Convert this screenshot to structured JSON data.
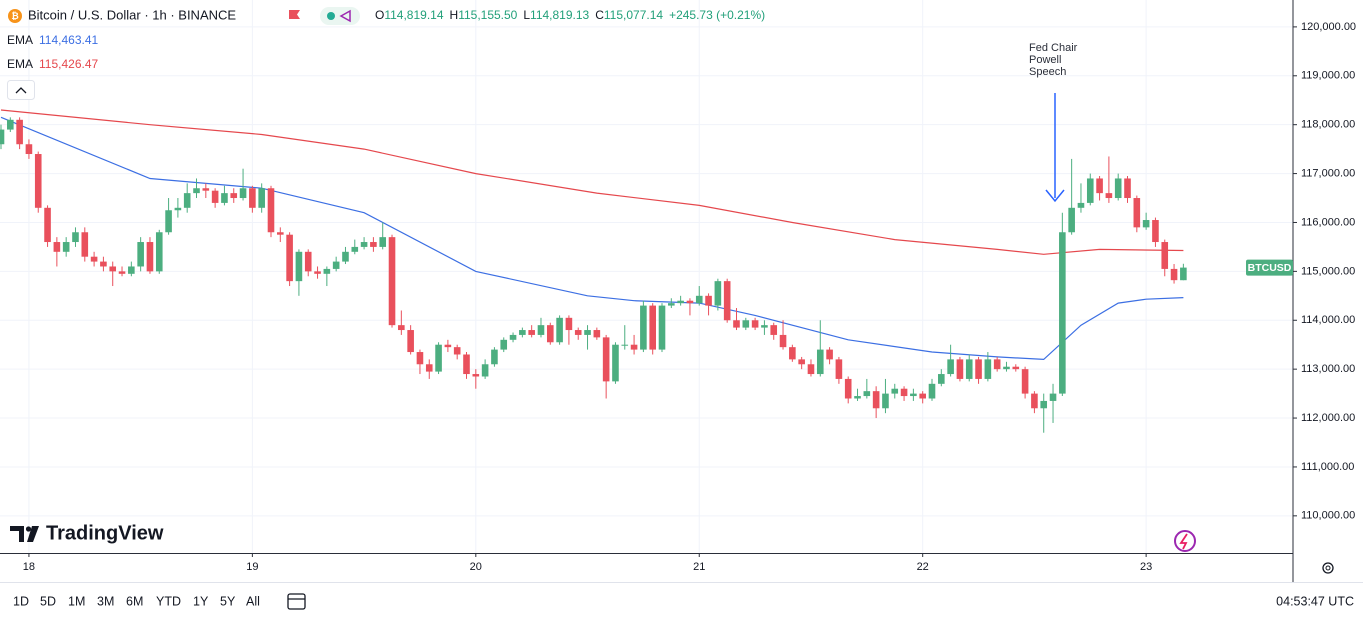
{
  "header": {
    "symbol": "Bitcoin / U.S. Dollar · 1h · BINANCE",
    "ohlc": [
      {
        "label": "O",
        "value": "114,819.14"
      },
      {
        "label": "H",
        "value": "115,155.50"
      },
      {
        "label": "L",
        "value": "114,819.13"
      },
      {
        "label": "C",
        "value": "115,077.14"
      }
    ],
    "change": "+245.73 (+0.21%)",
    "indicator_values": [
      "114,463.41",
      "115,426.47"
    ]
  },
  "chart_data": {
    "type": "candlestick",
    "categories": [
      null,
      null,
      null,
      "18",
      null,
      null,
      null,
      null,
      null,
      null,
      null,
      null,
      null,
      null,
      null,
      null,
      null,
      null,
      null,
      null,
      null,
      null,
      null,
      null,
      null,
      null,
      null,
      "19",
      null,
      null,
      null,
      null,
      null,
      null,
      null,
      null,
      null,
      null,
      null,
      null,
      null,
      null,
      null,
      null,
      null,
      null,
      null,
      null,
      null,
      null,
      null,
      "20",
      null,
      null,
      null,
      null,
      null,
      null,
      null,
      null,
      null,
      null,
      null,
      null,
      null,
      null,
      null,
      null,
      null,
      null,
      null,
      null,
      null,
      null,
      null,
      "21",
      null,
      null,
      null,
      null,
      null,
      null,
      null,
      null,
      null,
      null,
      null,
      null,
      null,
      null,
      null,
      null,
      null,
      null,
      null,
      null,
      null,
      null,
      null,
      "22",
      null,
      null,
      null,
      null,
      null,
      null,
      null,
      null,
      null,
      null,
      null,
      null,
      null,
      null,
      null,
      null,
      null,
      null,
      null,
      null,
      null,
      null,
      null,
      "23",
      null,
      null,
      null,
      null
    ],
    "open": [
      117600,
      117900,
      118100,
      117600,
      117400,
      116300,
      115600,
      115400,
      115600,
      115800,
      115300,
      115200,
      115100,
      115000,
      114950,
      115100,
      115600,
      115000,
      115800,
      116250,
      116300,
      116600,
      116700,
      116650,
      116400,
      116600,
      116500,
      116700,
      116300,
      116700,
      115800,
      115750,
      114800,
      115400,
      115000,
      114950,
      115050,
      115200,
      115400,
      115500,
      115600,
      115500,
      115700,
      113900,
      113800,
      113350,
      113100,
      112950,
      113500,
      113450,
      113300,
      112900,
      112850,
      113100,
      113400,
      113600,
      113700,
      113800,
      113700,
      113900,
      113550,
      114050,
      113800,
      113700,
      113800,
      113650,
      112750,
      113500,
      113500,
      113400,
      114300,
      113400,
      114300,
      114350,
      114400,
      114350,
      114500,
      114300,
      114800,
      114000,
      113850,
      114000,
      113850,
      113900,
      113700,
      113450,
      113200,
      113100,
      112900,
      113400,
      113200,
      112800,
      112400,
      112450,
      112550,
      112200,
      112500,
      112600,
      112450,
      112500,
      112400,
      112700,
      112900,
      113200,
      112800,
      113200,
      112800,
      113200,
      113000,
      113050,
      113000,
      112500,
      112200,
      112350,
      112500,
      115800,
      116300,
      116400,
      116900,
      116600,
      116500,
      116900,
      116500,
      115900,
      116050,
      115600,
      115050,
      114819.14
    ],
    "high": [
      118000,
      118150,
      118150,
      117700,
      117450,
      116350,
      115700,
      115700,
      115900,
      115900,
      115400,
      115300,
      115200,
      115100,
      115200,
      115700,
      115700,
      115850,
      116500,
      116500,
      116800,
      116900,
      116800,
      116700,
      116750,
      116700,
      117100,
      116750,
      116800,
      116750,
      115900,
      115800,
      115450,
      115450,
      115100,
      115100,
      115300,
      115500,
      115650,
      115700,
      115700,
      116000,
      115750,
      114200,
      113900,
      113400,
      113200,
      113550,
      113600,
      113500,
      113350,
      113000,
      113200,
      113450,
      113650,
      113750,
      113850,
      113900,
      114050,
      113950,
      114100,
      114100,
      113850,
      113900,
      113850,
      113700,
      113550,
      113900,
      113700,
      114400,
      114350,
      114350,
      114450,
      114500,
      114450,
      114700,
      114550,
      114850,
      114850,
      114250,
      114050,
      114050,
      114000,
      113950,
      114000,
      113500,
      113250,
      113200,
      114000,
      113450,
      113250,
      112850,
      112600,
      112800,
      112650,
      112800,
      112700,
      112650,
      112600,
      112550,
      112800,
      113000,
      113500,
      113250,
      113300,
      113250,
      113350,
      113250,
      113150,
      113100,
      113050,
      112550,
      112500,
      112700,
      116200,
      117300,
      116800,
      117000,
      116950,
      117350,
      117000,
      116950,
      116550,
      116200,
      116100,
      115650,
      115150,
      115155.5
    ],
    "low": [
      117500,
      117850,
      117500,
      117300,
      116200,
      115500,
      115100,
      115300,
      115500,
      115200,
      115100,
      115000,
      114700,
      114900,
      114900,
      115000,
      114950,
      114950,
      115750,
      116100,
      116200,
      116500,
      116500,
      116300,
      116350,
      116400,
      116450,
      116200,
      116200,
      115700,
      115600,
      114700,
      114500,
      114900,
      114850,
      114700,
      115000,
      115150,
      115350,
      115450,
      115400,
      115450,
      113850,
      113700,
      113300,
      112900,
      112800,
      112900,
      113350,
      113200,
      112800,
      112600,
      112800,
      113050,
      113350,
      113550,
      113650,
      113650,
      113650,
      113500,
      113500,
      113500,
      113600,
      113400,
      113600,
      112400,
      112700,
      113400,
      113300,
      113350,
      113300,
      113350,
      114250,
      114300,
      114100,
      114300,
      114100,
      114200,
      113950,
      113800,
      113800,
      113800,
      113700,
      113600,
      113400,
      113150,
      113000,
      112850,
      112850,
      113100,
      112700,
      112300,
      112350,
      112400,
      112000,
      112100,
      112400,
      112350,
      112350,
      112300,
      112350,
      112650,
      112850,
      112750,
      112750,
      112700,
      112750,
      112950,
      112950,
      112950,
      112400,
      112100,
      111700,
      111900,
      112450,
      115750,
      116200,
      116350,
      116450,
      116400,
      116450,
      116400,
      115800,
      115850,
      115500,
      114900,
      114750,
      114819.13
    ],
    "close": [
      117900,
      118100,
      117600,
      117400,
      116300,
      115600,
      115400,
      115600,
      115800,
      115300,
      115200,
      115100,
      115000,
      114950,
      115100,
      115600,
      115000,
      115800,
      116250,
      116300,
      116600,
      116700,
      116650,
      116400,
      116600,
      116500,
      116700,
      116300,
      116700,
      115800,
      115750,
      114800,
      115400,
      115000,
      114950,
      115050,
      115200,
      115400,
      115500,
      115600,
      115500,
      115700,
      113900,
      113800,
      113350,
      113100,
      112950,
      113500,
      113450,
      113300,
      112900,
      112850,
      113100,
      113400,
      113600,
      113700,
      113800,
      113700,
      113900,
      113550,
      114050,
      113800,
      113700,
      113800,
      113650,
      112750,
      113500,
      113500,
      113400,
      114300,
      113400,
      114300,
      114350,
      114400,
      114350,
      114500,
      114300,
      114800,
      114000,
      113850,
      114000,
      113850,
      113900,
      113700,
      113450,
      113200,
      113100,
      112900,
      113400,
      113200,
      112800,
      112400,
      112450,
      112550,
      112200,
      112500,
      112600,
      112450,
      112500,
      112400,
      112700,
      112900,
      113200,
      112800,
      113200,
      112800,
      113200,
      113000,
      113050,
      113000,
      112500,
      112200,
      112350,
      112500,
      115800,
      116300,
      116400,
      116900,
      116600,
      116500,
      116900,
      116500,
      115900,
      116050,
      115600,
      115050,
      114820,
      115077.14
    ],
    "up_color": "#4cae80",
    "down_color": "#e9505c",
    "ema": [
      {
        "name": "EMA",
        "color": "#3c6fe3",
        "x": [
          0,
          16,
          28,
          39,
          51,
          63,
          68,
          75,
          81,
          91,
          100,
          107,
          112,
          116,
          120,
          123,
          127
        ],
        "values": [
          118150,
          116900,
          116700,
          116200,
          115000,
          114500,
          114400,
          114350,
          114100,
          113600,
          113350,
          113250,
          113200,
          113900,
          114350,
          114430,
          114463.41
        ]
      },
      {
        "name": "EMA",
        "color": "#e5484d",
        "x": [
          0,
          16,
          28,
          39,
          51,
          64,
          75,
          85,
          96,
          107,
          112,
          118,
          127
        ],
        "values": [
          118300,
          118000,
          117800,
          117500,
          117000,
          116600,
          116350,
          116000,
          115650,
          115450,
          115350,
          115450,
          115426.47
        ]
      }
    ],
    "annotation": [
      "Fed Chair",
      "Powell",
      "Speech"
    ],
    "price_tag": "BTCUSD",
    "ylim": [
      109240,
      120550
    ],
    "yticks": [
      {
        "value": 110000,
        "label": "110,000.00"
      },
      {
        "value": 111000,
        "label": "111,000.00"
      },
      {
        "value": 112000,
        "label": "112,000.00"
      },
      {
        "value": 113000,
        "label": "113,000.00"
      },
      {
        "value": 114000,
        "label": "114,000.00"
      },
      {
        "value": 115000,
        "label": "115,000.00"
      },
      {
        "value": 116000,
        "label": "116,000.00"
      },
      {
        "value": 117000,
        "label": "117,000.00"
      },
      {
        "value": 118000,
        "label": "118,000.00"
      },
      {
        "value": 119000,
        "label": "119,000.00"
      },
      {
        "value": 120000,
        "label": "120,000.00"
      }
    ],
    "grid": true
  },
  "branding": "TradingView",
  "toolbar": {
    "ranges": [
      "1D",
      "5D",
      "1M",
      "3M",
      "6M",
      "YTD",
      "1Y",
      "5Y",
      "All"
    ],
    "clock": "04:53:47 UTC"
  }
}
